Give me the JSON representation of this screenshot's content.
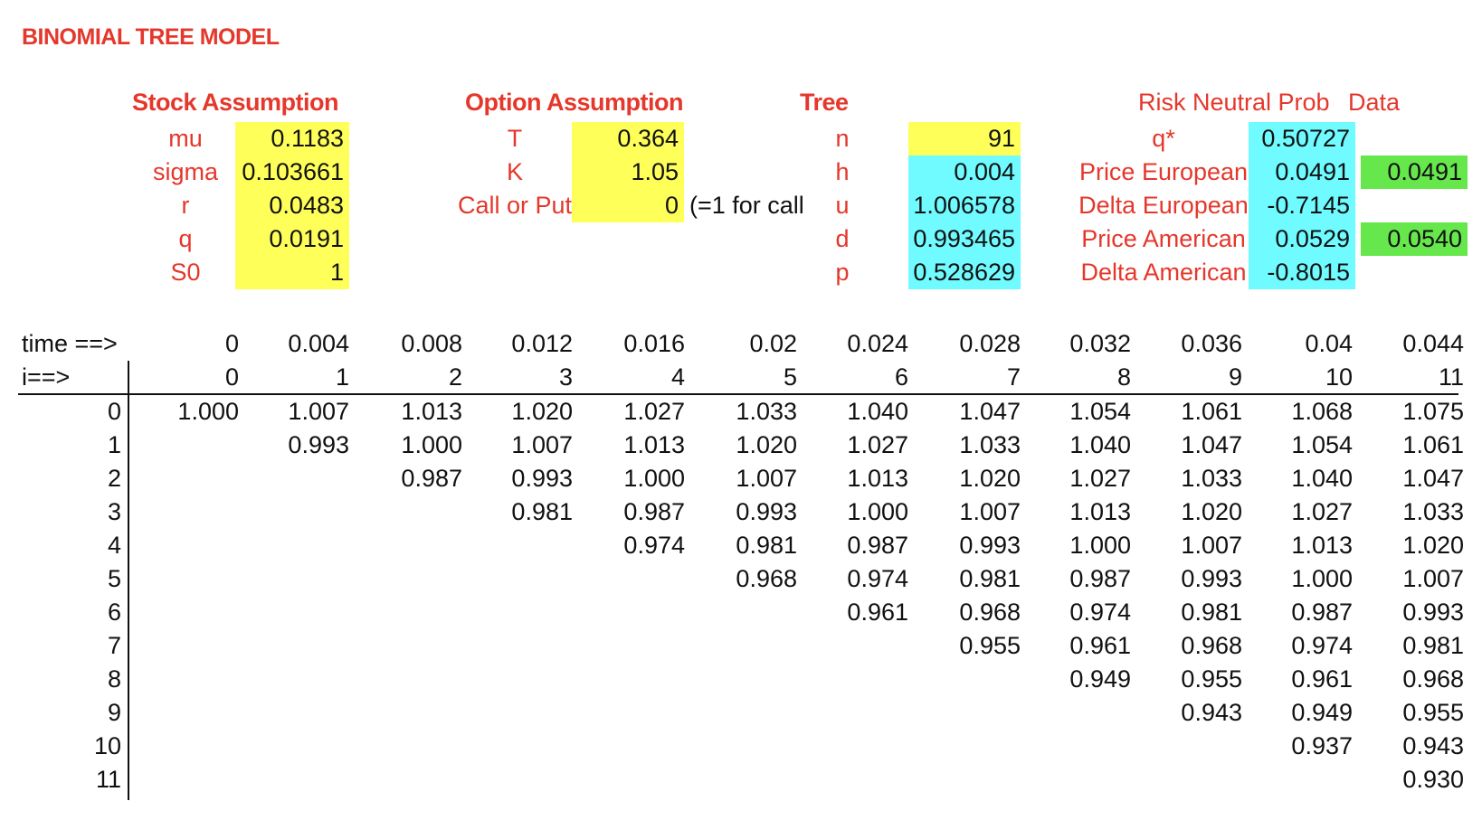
{
  "title": "BINOMIAL TREE MODEL",
  "stock": {
    "heading": "Stock Assumption",
    "rows": [
      {
        "label": "mu",
        "value": "0.1183"
      },
      {
        "label": "sigma",
        "value": "0.103661"
      },
      {
        "label": "r",
        "value": "0.0483"
      },
      {
        "label": "q",
        "value": "0.0191"
      },
      {
        "label": "S0",
        "value": "1"
      }
    ]
  },
  "option": {
    "heading": "Option Assumption",
    "rows": [
      {
        "label": "T",
        "value": "0.364"
      },
      {
        "label": "K",
        "value": "1.05"
      },
      {
        "label": "Call or Put",
        "value": "0"
      }
    ],
    "note": "(=1 for call"
  },
  "tree": {
    "heading": "Tree",
    "rows": [
      {
        "label": "n",
        "value": "91"
      },
      {
        "label": "h",
        "value": "0.004"
      },
      {
        "label": "u",
        "value": "1.006578"
      },
      {
        "label": "d",
        "value": "0.993465"
      },
      {
        "label": "p",
        "value": "0.528629"
      }
    ]
  },
  "risk": {
    "heading": "Risk Neutral Prob",
    "data_heading": "Data",
    "rows": [
      {
        "label": "q*",
        "value": "0.50727",
        "data": ""
      },
      {
        "label": "Price European",
        "value": "0.0491",
        "data": "0.0491"
      },
      {
        "label": "Delta European",
        "value": "-0.7145",
        "data": ""
      },
      {
        "label": "Price American",
        "value": "0.0529",
        "data": "0.0540"
      },
      {
        "label": "Delta American",
        "value": "-0.8015",
        "data": ""
      }
    ]
  },
  "grid": {
    "time_label": "time ==>",
    "i_label": "i==>",
    "times": [
      "0",
      "0.004",
      "0.008",
      "0.012",
      "0.016",
      "0.02",
      "0.024",
      "0.028",
      "0.032",
      "0.036",
      "0.04",
      "0.044"
    ],
    "steps": [
      "0",
      "1",
      "2",
      "3",
      "4",
      "5",
      "6",
      "7",
      "8",
      "9",
      "10",
      "11"
    ],
    "row_labels": [
      "0",
      "1",
      "2",
      "3",
      "4",
      "5",
      "6",
      "7",
      "8",
      "9",
      "10",
      "11"
    ],
    "rows": [
      [
        "1.000",
        "1.007",
        "1.013",
        "1.020",
        "1.027",
        "1.033",
        "1.040",
        "1.047",
        "1.054",
        "1.061",
        "1.068",
        "1.075"
      ],
      [
        "",
        "0.993",
        "1.000",
        "1.007",
        "1.013",
        "1.020",
        "1.027",
        "1.033",
        "1.040",
        "1.047",
        "1.054",
        "1.061"
      ],
      [
        "",
        "",
        "0.987",
        "0.993",
        "1.000",
        "1.007",
        "1.013",
        "1.020",
        "1.027",
        "1.033",
        "1.040",
        "1.047"
      ],
      [
        "",
        "",
        "",
        "0.981",
        "0.987",
        "0.993",
        "1.000",
        "1.007",
        "1.013",
        "1.020",
        "1.027",
        "1.033"
      ],
      [
        "",
        "",
        "",
        "",
        "0.974",
        "0.981",
        "0.987",
        "0.993",
        "1.000",
        "1.007",
        "1.013",
        "1.020"
      ],
      [
        "",
        "",
        "",
        "",
        "",
        "0.968",
        "0.974",
        "0.981",
        "0.987",
        "0.993",
        "1.000",
        "1.007"
      ],
      [
        "",
        "",
        "",
        "",
        "",
        "",
        "0.961",
        "0.968",
        "0.974",
        "0.981",
        "0.987",
        "0.993"
      ],
      [
        "",
        "",
        "",
        "",
        "",
        "",
        "",
        "0.955",
        "0.961",
        "0.968",
        "0.974",
        "0.981"
      ],
      [
        "",
        "",
        "",
        "",
        "",
        "",
        "",
        "",
        "0.949",
        "0.955",
        "0.961",
        "0.968"
      ],
      [
        "",
        "",
        "",
        "",
        "",
        "",
        "",
        "",
        "",
        "0.943",
        "0.949",
        "0.955"
      ],
      [
        "",
        "",
        "",
        "",
        "",
        "",
        "",
        "",
        "",
        "",
        "0.937",
        "0.943"
      ],
      [
        "",
        "",
        "",
        "",
        "",
        "",
        "",
        "",
        "",
        "",
        "",
        "0.930"
      ]
    ]
  }
}
